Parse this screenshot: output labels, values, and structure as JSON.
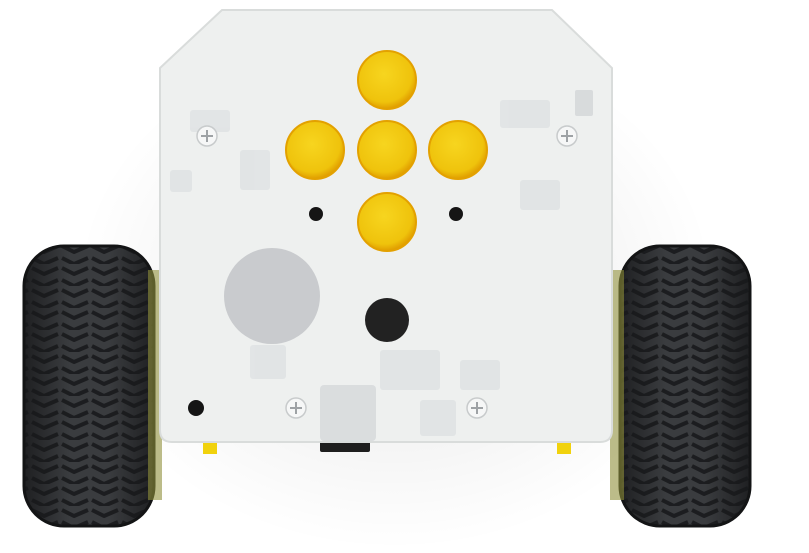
{
  "scene": {
    "subject": "robot-top-view",
    "colors": {
      "background": "#ffffff",
      "board": "#eef0ef",
      "board_edge": "#d9dcdb",
      "button": "#f2c80f",
      "button_rim": "#e3a100",
      "tire": "#2b2d2f",
      "tire_tread": "#1b1c1e",
      "hole": "#151515",
      "speaker": "#c9cbce",
      "yellow_part": "#f1d20d"
    },
    "components": {
      "buttons": [
        "up",
        "left",
        "center",
        "right",
        "down"
      ],
      "wheels": [
        "left",
        "right"
      ],
      "screws": 4,
      "sensor_holes": 3
    }
  }
}
